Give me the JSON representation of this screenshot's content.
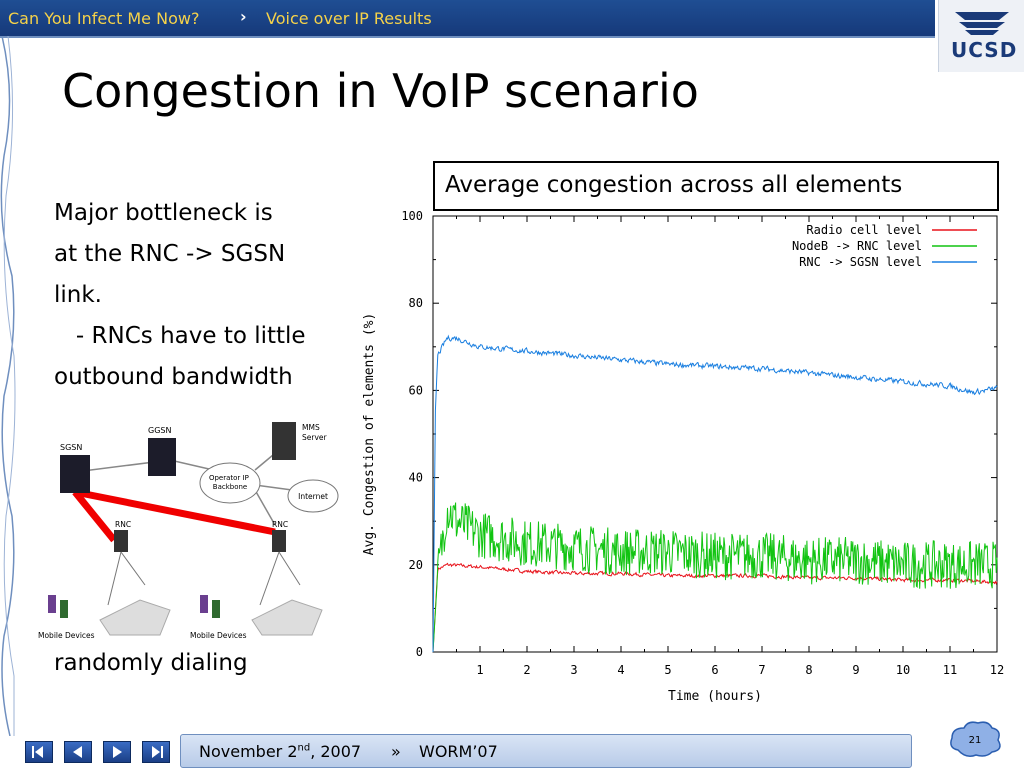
{
  "header": {
    "crumb_1": "Can You Infect Me Now?",
    "crumb_sep": "›",
    "crumb_2": "Voice over IP Results",
    "logo_text": "UCSD"
  },
  "slide": {
    "title": "Congestion in VoIP scenario",
    "body_lines": [
      "Major bottleneck is",
      "at the RNC -> SGSN",
      "link.",
      "   - RNCs have to little",
      "outbound bandwidth"
    ],
    "bottom_line": "randomly dialing",
    "caption": "Average congestion across all elements"
  },
  "network": {
    "labels": {
      "sgsn": "SGSN",
      "ggsn": "GGSN",
      "mms": "MMS\nServer",
      "operator": "Operator IP\nBackbone",
      "internet": "Internet",
      "rnc1": "RNC",
      "rnc2": "RNC",
      "mobile1": "Mobile Devices",
      "mobile2": "Mobile Devices"
    }
  },
  "footer": {
    "date_pre": "November 2",
    "date_sup": "nd",
    "date_post": ", 2007",
    "sep": "»",
    "venue": "WORM’07",
    "page": "21"
  },
  "colors": {
    "radio": "#e8121a",
    "nodeb": "#11c411",
    "sgsn": "#1a7fe0"
  },
  "chart_data": {
    "type": "line",
    "xlabel": "Time (hours)",
    "ylabel": "Avg. Congestion of elements (%)",
    "xlim": [
      0,
      12
    ],
    "ylim": [
      0,
      100
    ],
    "xticks": [
      1,
      2,
      3,
      4,
      5,
      6,
      7,
      8,
      9,
      10,
      11,
      12
    ],
    "yticks": [
      0,
      20,
      40,
      60,
      80,
      100
    ],
    "legend_position": "top-right",
    "series": [
      {
        "name": "Radio cell level",
        "color": "#e8121a",
        "x": [
          0,
          0.1,
          0.3,
          1,
          2,
          3,
          4,
          5,
          6,
          7,
          8,
          9,
          10,
          11,
          12
        ],
        "y": [
          0,
          19,
          20,
          19.5,
          18.5,
          18,
          18,
          17.5,
          17.5,
          17.5,
          17,
          17,
          16.5,
          16.5,
          16
        ]
      },
      {
        "name": "NodeB -> RNC level",
        "color": "#11c411",
        "x": [
          0,
          0.1,
          0.3,
          0.5,
          1,
          2,
          3,
          4,
          5,
          6,
          7,
          8,
          9,
          10,
          11,
          12
        ],
        "y": [
          0,
          18,
          33,
          30,
          27,
          25,
          24,
          23,
          23,
          22,
          22,
          21,
          21,
          20,
          20,
          20
        ]
      },
      {
        "name": "RNC -> SGSN level",
        "color": "#1a7fe0",
        "x": [
          0,
          0.05,
          0.1,
          0.3,
          0.5,
          1,
          2,
          3,
          4,
          5,
          6,
          7,
          8,
          9,
          10,
          11,
          11.5,
          12
        ],
        "y": [
          0,
          55,
          68,
          72,
          72,
          70,
          69,
          68,
          67,
          66,
          65.5,
          65,
          64,
          63,
          62,
          61,
          59.5,
          60.5
        ]
      }
    ]
  }
}
